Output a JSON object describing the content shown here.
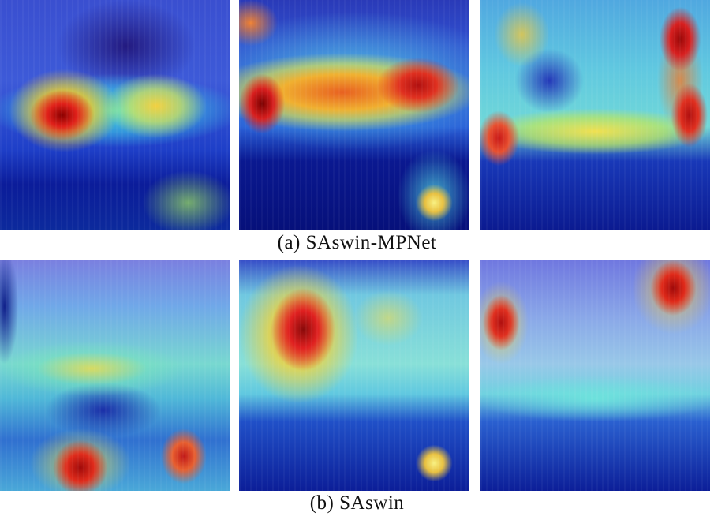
{
  "figure": {
    "rows": [
      {
        "caption": "(a) SAswin-MPNet",
        "panels": [
          "heatmap-1",
          "heatmap-2",
          "heatmap-3"
        ]
      },
      {
        "caption": "(b) SAswin",
        "panels": [
          "heatmap-1",
          "heatmap-2",
          "heatmap-3"
        ]
      }
    ]
  }
}
